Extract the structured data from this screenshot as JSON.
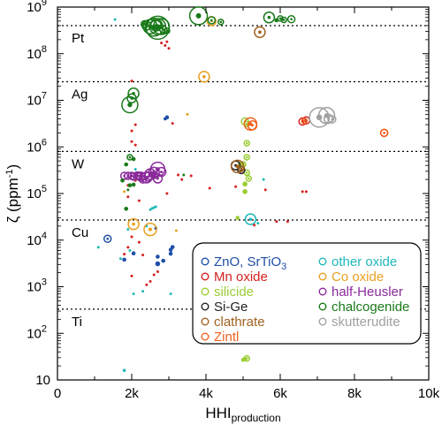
{
  "chart_data": {
    "type": "scatter",
    "xlabel": "HHI",
    "xlabel_sub": "production",
    "ylabel": "ζ (ppm",
    "ylabel_sup": "-1",
    "ylabel_close": ")",
    "xlim": [
      0,
      10000
    ],
    "ylim": [
      10,
      1000000000
    ],
    "yscale": "log",
    "x_ticks": [
      0,
      2000,
      4000,
      6000,
      8000,
      10000
    ],
    "x_tick_labels": [
      "0",
      "2k",
      "4k",
      "6k",
      "8k",
      "10k"
    ],
    "y_ticks": [
      {
        "value": 10,
        "base": "10",
        "exp": ""
      },
      {
        "value": 100,
        "base": "10",
        "exp": "2"
      },
      {
        "value": 1000,
        "base": "10",
        "exp": "3"
      },
      {
        "value": 10000,
        "base": "10",
        "exp": "4"
      },
      {
        "value": 100000,
        "base": "10",
        "exp": "5"
      },
      {
        "value": 1000000,
        "base": "10",
        "exp": "6"
      },
      {
        "value": 10000000,
        "base": "10",
        "exp": "7"
      },
      {
        "value": 100000000,
        "base": "10",
        "exp": "8"
      },
      {
        "value": 1000000000,
        "base": "10",
        "exp": "9"
      }
    ],
    "grid": false,
    "legend_position": "lower-right",
    "reference_lines": [
      {
        "label": "Pt",
        "value": 400000000
      },
      {
        "label": "Ag",
        "value": 25000000
      },
      {
        "label": "W",
        "value": 800000
      },
      {
        "label": "Cu",
        "value": 27000
      },
      {
        "label": "Ti",
        "value": 330
      }
    ],
    "series": [
      {
        "name": "ZnO, SrTiO",
        "name_sub": "3",
        "color": "#1f4fa8",
        "points": [
          [
            1350,
            10700,
            4
          ],
          [
            1800,
            3800,
            2
          ],
          [
            2050,
            5200,
            2
          ],
          [
            2700,
            4400,
            2
          ],
          [
            2700,
            3100,
            2.5
          ],
          [
            2850,
            3600,
            2
          ],
          [
            3050,
            5100,
            2
          ],
          [
            3050,
            6200,
            2
          ],
          [
            3100,
            7100,
            2
          ],
          [
            2650,
            18000,
            1.5
          ],
          [
            2950,
            4300000,
            2
          ],
          [
            2900,
            4000000,
            1.5
          ]
        ]
      },
      {
        "name": "Mn oxide",
        "color": "#d42020",
        "points": [
          [
            1800,
            5000,
            1
          ],
          [
            1900,
            7000,
            1
          ],
          [
            2000,
            1700,
            1
          ],
          [
            2000,
            11800,
            1
          ],
          [
            2050,
            22000,
            1
          ],
          [
            2200,
            9000,
            1
          ],
          [
            2300,
            4800,
            1
          ],
          [
            2400,
            1100,
            1
          ],
          [
            2500,
            1300,
            1
          ],
          [
            2600,
            1800,
            1
          ],
          [
            2700,
            2100,
            1
          ],
          [
            1900,
            85000,
            1
          ],
          [
            1900,
            150000,
            1
          ],
          [
            2100,
            190000,
            1
          ],
          [
            2100,
            260000,
            1
          ],
          [
            2200,
            70000,
            1
          ],
          [
            2000,
            2200000,
            1
          ],
          [
            2100,
            3000000,
            1
          ],
          [
            2000,
            1300000,
            1
          ],
          [
            2900,
            150000000,
            1
          ],
          [
            2800,
            170000000,
            1
          ],
          [
            3000,
            130000000,
            1
          ],
          [
            2950,
            180000000,
            1
          ],
          [
            3100,
            3200000,
            1
          ],
          [
            3350,
            200000,
            1
          ],
          [
            3250,
            250000,
            1
          ],
          [
            3600,
            240000,
            1
          ],
          [
            4100,
            130000,
            1
          ],
          [
            4800,
            140000,
            1
          ],
          [
            5300,
            21000,
            1
          ],
          [
            5600,
            120000,
            1
          ],
          [
            5900,
            25000,
            1
          ],
          [
            6200,
            25000,
            1
          ],
          [
            6600,
            110000,
            1
          ],
          [
            6700,
            110000,
            1
          ],
          [
            6600,
            3500000,
            4
          ],
          [
            6700,
            3700000,
            4
          ],
          [
            8800,
            2000000,
            4
          ],
          [
            2500,
            360000000,
            1
          ],
          [
            2950,
            100000,
            1
          ],
          [
            2000,
            26000000,
            1
          ],
          [
            2100,
            1100000,
            1
          ]
        ]
      },
      {
        "name": "silicide",
        "color": "#9acd32",
        "points": [
          [
            5050,
            3500000,
            4
          ],
          [
            5100,
            3100000,
            3
          ],
          [
            5100,
            1200000,
            3
          ],
          [
            5100,
            600000,
            3
          ],
          [
            5000,
            420000,
            3
          ],
          [
            5100,
            280000,
            3
          ],
          [
            5150,
            210000,
            3
          ],
          [
            5050,
            160000,
            2.5
          ],
          [
            5050,
            110000,
            2.5
          ],
          [
            5100,
            29,
            3
          ],
          [
            5050,
            28,
            2
          ],
          [
            5000,
            27,
            2
          ],
          [
            4850,
            30000,
            2
          ],
          [
            4950,
            420000,
            3
          ]
        ]
      },
      {
        "name": "Si-Ge",
        "color": "#222222",
        "points": [
          [
            4800,
            400000,
            5
          ],
          [
            4950,
            320000,
            4
          ]
        ]
      },
      {
        "name": "clathrate",
        "color": "#a0601e",
        "points": [
          [
            4850,
            380000,
            7
          ],
          [
            4950,
            340000,
            3
          ],
          [
            5450,
            290000000,
            6
          ]
        ]
      },
      {
        "name": "Zintl",
        "color": "#f06020",
        "points": [
          [
            5200,
            3100000,
            7
          ],
          [
            5250,
            2900000,
            5
          ],
          [
            6650,
            3600000,
            3
          ],
          [
            8800,
            2000000,
            4
          ]
        ]
      },
      {
        "name": "other oxide",
        "color": "#20b8b8",
        "points": [
          [
            1100,
            7000,
            1
          ],
          [
            1700,
            4000,
            1
          ],
          [
            1800,
            16,
            1.5
          ],
          [
            1900,
            17000,
            1
          ],
          [
            2100,
            330000,
            1
          ],
          [
            2500,
            45000,
            1
          ],
          [
            2550,
            48000,
            1
          ],
          [
            2600,
            50000,
            1
          ],
          [
            2650,
            52000,
            1
          ],
          [
            1950,
            6000,
            1
          ],
          [
            2050,
            700,
            1
          ],
          [
            2300,
            800,
            1
          ],
          [
            2400,
            20000,
            1
          ],
          [
            5200,
            28000,
            6
          ],
          [
            5400,
            23000,
            1
          ],
          [
            3050,
            700,
            1
          ],
          [
            1550,
            540000000,
            1
          ],
          [
            5550,
            200000,
            1
          ]
        ]
      },
      {
        "name": "Co oxide",
        "color": "#e8a020",
        "points": [
          [
            2050,
            22000,
            6
          ],
          [
            2500,
            17000,
            7
          ],
          [
            3950,
            32000000,
            6
          ],
          [
            3500,
            5000000,
            1
          ],
          [
            4150,
            500000000,
            5
          ],
          [
            1800,
            110000,
            1
          ],
          [
            3200,
            16000,
            1
          ]
        ]
      },
      {
        "name": "half-Heusler",
        "color": "#8a2a9a",
        "points": [
          [
            1800,
            240000,
            4
          ],
          [
            1900,
            240000,
            4
          ],
          [
            2000,
            240000,
            4
          ],
          [
            2050,
            230000,
            4
          ],
          [
            2150,
            240000,
            4
          ],
          [
            2200,
            240000,
            4
          ],
          [
            2250,
            230000,
            5
          ],
          [
            2300,
            200000,
            4
          ],
          [
            2400,
            220000,
            6
          ],
          [
            2450,
            230000,
            5
          ],
          [
            2500,
            260000,
            6
          ],
          [
            2600,
            280000,
            6
          ],
          [
            2700,
            330000,
            8
          ],
          [
            2800,
            290000,
            5
          ],
          [
            2600,
            250000,
            4
          ],
          [
            2700,
            210000,
            5
          ],
          [
            2200,
            235000,
            4
          ],
          [
            2150,
            245000,
            4
          ]
        ]
      },
      {
        "name": "chalcogenide",
        "color": "#1a7a1a",
        "points": [
          [
            1950,
            8000000,
            9
          ],
          [
            2050,
            14000000,
            6
          ],
          [
            2350,
            430000000,
            4
          ],
          [
            2400,
            400000000,
            5
          ],
          [
            2500,
            380000000,
            8
          ],
          [
            2600,
            370000000,
            10
          ],
          [
            2700,
            360000000,
            13
          ],
          [
            2650,
            400000000,
            6
          ],
          [
            2800,
            380000000,
            9
          ],
          [
            2850,
            330000000,
            4
          ],
          [
            2950,
            310000000,
            3
          ],
          [
            3800,
            650000000,
            10
          ],
          [
            4150,
            520000000,
            4
          ],
          [
            4400,
            480000000,
            3
          ],
          [
            5700,
            600000000,
            6
          ],
          [
            6000,
            570000000,
            3
          ],
          [
            6100,
            530000000,
            3
          ],
          [
            6300,
            550000000,
            4
          ],
          [
            5900,
            520000000,
            2
          ],
          [
            2000,
            11000000,
            5
          ],
          [
            1900,
            120000,
            1
          ],
          [
            1950,
            150000,
            2
          ],
          [
            2050,
            155000,
            2
          ],
          [
            3400,
            250000,
            1
          ],
          [
            2700,
            380000000,
            9
          ],
          [
            1950,
            600000,
            3
          ],
          [
            2050,
            550000,
            2
          ],
          [
            1850,
            420000,
            2
          ],
          [
            1850,
            47000,
            2
          ],
          [
            1750,
            190000,
            2
          ]
        ]
      },
      {
        "name": "skutterudite",
        "color": "#a0a0a0",
        "points": [
          [
            7050,
            4300000,
            11
          ],
          [
            7250,
            4700000,
            9
          ],
          [
            7300,
            4000000,
            5
          ],
          [
            7400,
            3900000,
            4
          ]
        ]
      }
    ]
  }
}
